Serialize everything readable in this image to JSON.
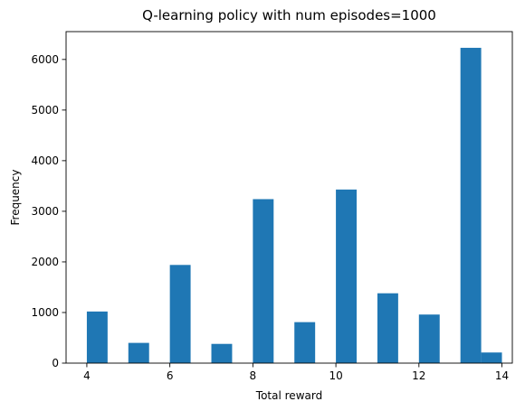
{
  "chart_data": {
    "type": "bar",
    "title": "Q-learning policy with num episodes=1000",
    "xlabel": "Total reward",
    "ylabel": "Frequency",
    "xlim": [
      3.5,
      14.25
    ],
    "ylim": [
      0,
      6550
    ],
    "xticks": [
      4,
      6,
      8,
      10,
      12,
      14
    ],
    "yticks": [
      0,
      1000,
      2000,
      3000,
      4000,
      5000,
      6000
    ],
    "bin_width": 0.5,
    "bar_color": "#1f77b4",
    "grid": false,
    "bins": [
      {
        "x0": 4.0,
        "x1": 4.5,
        "value": 1020
      },
      {
        "x0": 4.5,
        "x1": 5.0,
        "value": 0
      },
      {
        "x0": 5.0,
        "x1": 5.5,
        "value": 400
      },
      {
        "x0": 5.5,
        "x1": 6.0,
        "value": 0
      },
      {
        "x0": 6.0,
        "x1": 6.5,
        "value": 1940
      },
      {
        "x0": 6.5,
        "x1": 7.0,
        "value": 0
      },
      {
        "x0": 7.0,
        "x1": 7.5,
        "value": 380
      },
      {
        "x0": 7.5,
        "x1": 8.0,
        "value": 0
      },
      {
        "x0": 8.0,
        "x1": 8.5,
        "value": 3240
      },
      {
        "x0": 8.5,
        "x1": 9.0,
        "value": 0
      },
      {
        "x0": 9.0,
        "x1": 9.5,
        "value": 810
      },
      {
        "x0": 9.5,
        "x1": 10.0,
        "value": 0
      },
      {
        "x0": 10.0,
        "x1": 10.5,
        "value": 3430
      },
      {
        "x0": 10.5,
        "x1": 11.0,
        "value": 0
      },
      {
        "x0": 11.0,
        "x1": 11.5,
        "value": 1380
      },
      {
        "x0": 11.5,
        "x1": 12.0,
        "value": 0
      },
      {
        "x0": 12.0,
        "x1": 12.5,
        "value": 960
      },
      {
        "x0": 12.5,
        "x1": 13.0,
        "value": 0
      },
      {
        "x0": 13.0,
        "x1": 13.5,
        "value": 6230
      },
      {
        "x0": 13.5,
        "x1": 14.0,
        "value": 210
      }
    ]
  }
}
